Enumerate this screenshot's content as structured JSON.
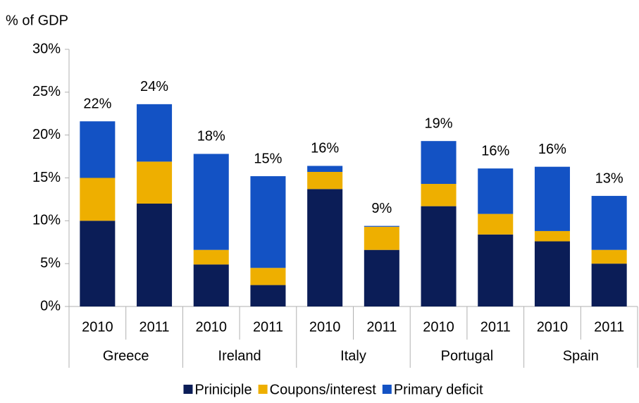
{
  "chart_data": {
    "type": "stacked_bar",
    "y_axis_label": "% of GDP",
    "groups": [
      "Greece",
      "Ireland",
      "Italy",
      "Portugal",
      "Spain"
    ],
    "categories": [
      "2010",
      "2011",
      "2010",
      "2011",
      "2010",
      "2011",
      "2010",
      "2011",
      "2010",
      "2011"
    ],
    "series": [
      {
        "name": "Priniciple",
        "color": "#0b1d57",
        "values": [
          10.0,
          12.0,
          4.9,
          2.5,
          13.7,
          6.6,
          11.7,
          8.4,
          7.6,
          5.0
        ]
      },
      {
        "name": "Coupons/interest",
        "color": "#eeaf00",
        "values": [
          5.0,
          4.9,
          1.7,
          2.0,
          2.0,
          2.7,
          2.6,
          2.4,
          1.2,
          1.6
        ]
      },
      {
        "name": "Primary deficit",
        "color": "#1352c4",
        "values": [
          6.6,
          6.7,
          11.2,
          10.7,
          0.7,
          0.1,
          5.0,
          5.3,
          7.5,
          6.3
        ]
      }
    ],
    "total_labels": [
      "22%",
      "24%",
      "18%",
      "15%",
      "16%",
      "9%",
      "19%",
      "16%",
      "16%",
      "13%"
    ],
    "ylim": [
      0,
      30
    ],
    "yticks": [
      {
        "value": 0,
        "label": "0%"
      },
      {
        "value": 5,
        "label": "5%"
      },
      {
        "value": 10,
        "label": "10%"
      },
      {
        "value": 15,
        "label": "15%"
      },
      {
        "value": 20,
        "label": "20%"
      },
      {
        "value": 25,
        "label": "25%"
      },
      {
        "value": 30,
        "label": "30%"
      }
    ],
    "legend": "bottom"
  }
}
